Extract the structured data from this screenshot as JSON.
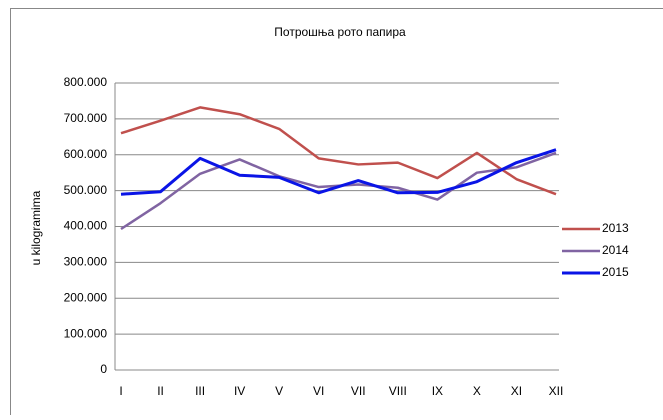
{
  "chart_data": {
    "type": "line",
    "title": "Потрошња рото папира",
    "y_label": "u kilogramima",
    "categories": [
      "I",
      "II",
      "III",
      "IV",
      "V",
      "VI",
      "VII",
      "VIII",
      "IX",
      "X",
      "XI",
      "XII"
    ],
    "series": [
      {
        "name": "2013",
        "color": "#c0504d",
        "values": [
          660000,
          695000,
          732000,
          713000,
          672000,
          590000,
          573000,
          578000,
          535000,
          605000,
          532000,
          490000
        ]
      },
      {
        "name": "2014",
        "color": "#8064a2",
        "values": [
          393000,
          465000,
          547000,
          587000,
          540000,
          510000,
          517000,
          508000,
          475000,
          550000,
          565000,
          605000
        ]
      },
      {
        "name": "2015",
        "color": "#0a14e6",
        "values": [
          490000,
          497000,
          590000,
          543000,
          537000,
          494000,
          528000,
          494000,
          495000,
          525000,
          578000,
          614000
        ]
      }
    ],
    "ylim": [
      0,
      800000
    ],
    "yticks": [
      0,
      {
        "value": 100000,
        "label": "100.000"
      },
      {
        "value": 200000,
        "label": "200.000"
      },
      {
        "value": 300000,
        "label": "300.000"
      },
      {
        "value": 400000,
        "label": "400.000"
      },
      {
        "value": 500000,
        "label": "500.000"
      },
      {
        "value": 600000,
        "label": "600.000"
      },
      {
        "value": 700000,
        "label": "700.000"
      },
      {
        "value": 800000,
        "label": "800.000"
      }
    ],
    "grid": true,
    "legend": "right"
  }
}
